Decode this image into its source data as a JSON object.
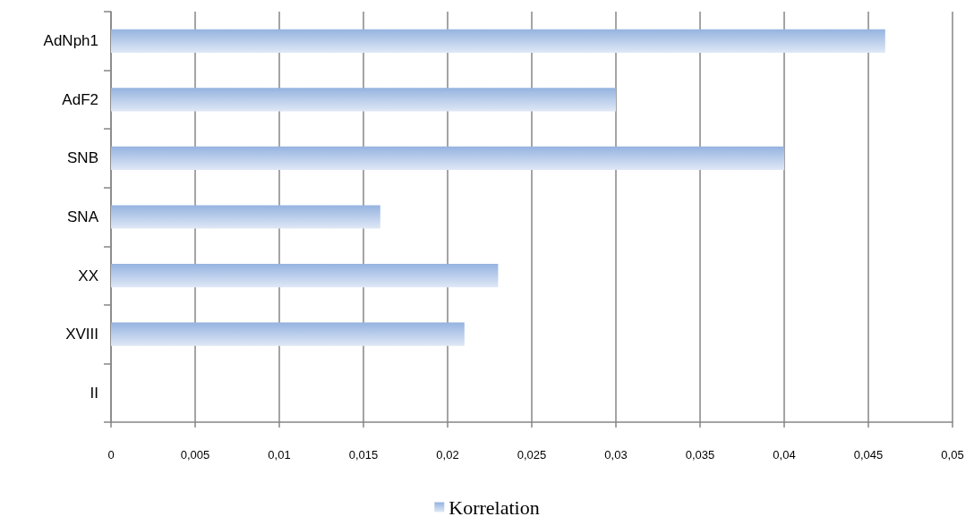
{
  "chart_data": {
    "type": "bar",
    "orientation": "horizontal",
    "categories": [
      "AdNph1",
      "AdF2",
      "SNB",
      "SNA",
      "XX",
      "XVIII",
      "II"
    ],
    "series": [
      {
        "name": "Korrelation",
        "color": "#95b3e0",
        "values": [
          0.046,
          0.03,
          0.04,
          0.016,
          0.023,
          0.021,
          0
        ]
      }
    ],
    "xlim": [
      0,
      0.05
    ],
    "xticks": [
      {
        "value": 0,
        "label": "0"
      },
      {
        "value": 0.005,
        "label": "0,005"
      },
      {
        "value": 0.01,
        "label": "0,01"
      },
      {
        "value": 0.015,
        "label": "0,015"
      },
      {
        "value": 0.02,
        "label": "0,02"
      },
      {
        "value": 0.025,
        "label": "0,025"
      },
      {
        "value": 0.03,
        "label": "0,03"
      },
      {
        "value": 0.035,
        "label": "0,035"
      },
      {
        "value": 0.04,
        "label": "0,04"
      },
      {
        "value": 0.045,
        "label": "0,045"
      },
      {
        "value": 0.05,
        "label": "0,05"
      }
    ],
    "grid": "x",
    "legend": "bottom"
  }
}
